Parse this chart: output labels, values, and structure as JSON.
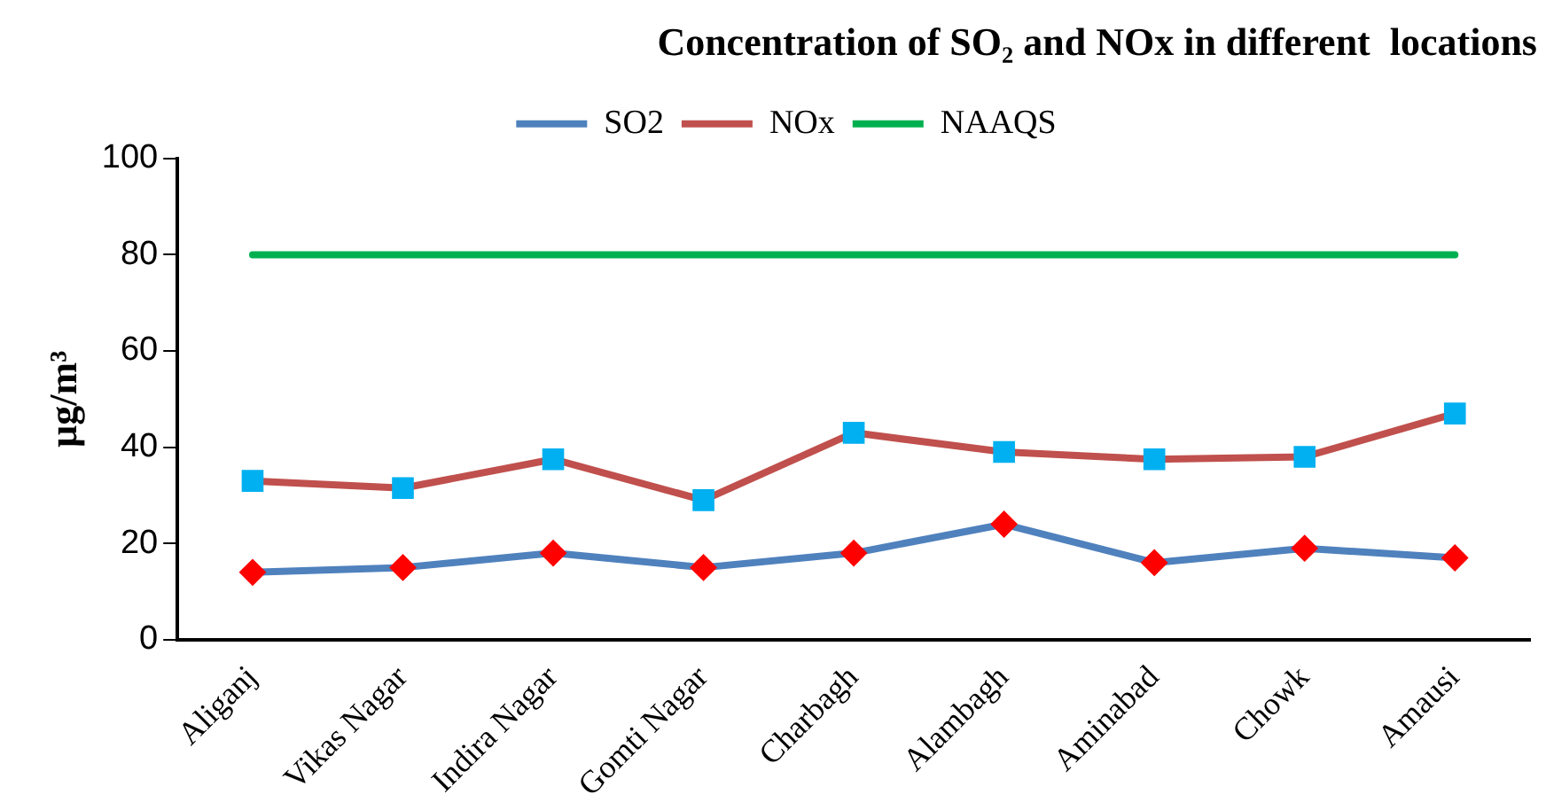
{
  "chart_data": {
    "type": "line",
    "title": "Concentration of SO₂ and NOx in different  locations",
    "ylabel": "µg/m³",
    "categories": [
      "Aliganj",
      "Vikas Nagar",
      "Indira Nagar",
      "Gomti Nagar",
      "Charbagh",
      "Alambagh",
      "Aminabad",
      "Chowk",
      "Amausi"
    ],
    "series": [
      {
        "name": "SO2",
        "color": "#4f81bd",
        "marker": "diamond",
        "values": [
          14,
          15,
          18,
          15,
          18,
          24,
          16,
          19,
          17
        ]
      },
      {
        "name": "NOx",
        "color": "#c0504d",
        "marker": "square",
        "values": [
          33,
          31.5,
          37.5,
          29,
          43,
          39,
          37.5,
          38,
          47
        ]
      },
      {
        "name": "NAAQS",
        "color": "#00b050",
        "marker": "none",
        "values": [
          80,
          80,
          80,
          80,
          80,
          80,
          80,
          80,
          80
        ]
      }
    ],
    "ylim": [
      0,
      100
    ],
    "yticks": [
      0,
      20,
      40,
      60,
      80,
      100
    ],
    "grid": false,
    "legend": "top"
  }
}
